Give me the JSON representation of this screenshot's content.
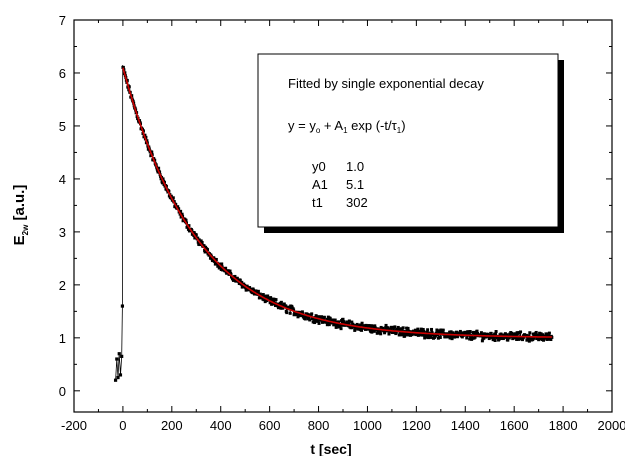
{
  "chart_data": {
    "type": "scatter",
    "xlabel": "t [sec]",
    "ylabel": {
      "base": "E",
      "subscript": "2w",
      "unit": " [a.u.]"
    },
    "xlim": [
      -200,
      2000
    ],
    "ylim": [
      -0.4,
      7
    ],
    "xticks": [
      "-200",
      "0",
      "200",
      "400",
      "600",
      "800",
      "1000",
      "1200",
      "1400",
      "1600",
      "1800",
      "2000"
    ],
    "yticks": [
      "0",
      "1",
      "2",
      "3",
      "4",
      "5",
      "6",
      "7"
    ],
    "grid": false,
    "series": [
      {
        "kind": "measured",
        "color": "#000000",
        "pre_step": {
          "x": [
            -30,
            -25,
            -20,
            -15,
            -10,
            -5,
            -2
          ],
          "y": [
            0.2,
            0.6,
            0.25,
            0.7,
            0.3,
            0.65,
            1.6
          ]
        },
        "decay": {
          "x_start": 0,
          "x_end": 1755,
          "noise": 0.05
        }
      },
      {
        "kind": "fit",
        "color": "#cc0000",
        "x_range": [
          0,
          1755
        ]
      }
    ],
    "fit_parameters": {
      "y0": 1.0,
      "A1": 5.1,
      "t1": 302
    }
  },
  "annotation": {
    "title": "Fitted by single exponential decay",
    "equation": {
      "y": "y",
      "eq": " = y",
      "sub0": "o",
      "plus": " + A",
      "sub1": "1",
      "exp": " exp (-t/",
      "tau": "τ",
      "sub2": "1",
      "close": ")"
    },
    "params": [
      {
        "name": "y0",
        "value": "1.0"
      },
      {
        "name": "A1",
        "value": "5.1"
      },
      {
        "name": "t1",
        "value": "302"
      }
    ]
  }
}
